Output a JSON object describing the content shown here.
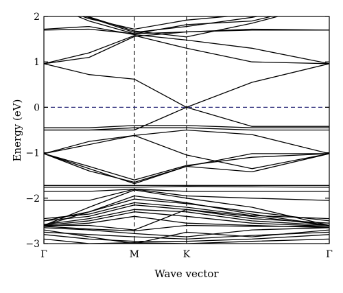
{
  "chart_data": {
    "type": "line",
    "title": "",
    "xlabel": "Wave vector",
    "ylabel": "Energy (eV)",
    "ylim": [
      -3,
      2
    ],
    "yticks": [
      -3,
      -2,
      -1,
      0,
      1,
      2
    ],
    "ytick_labels": [
      "−3",
      "−2",
      "−1",
      "0",
      "1",
      "2"
    ],
    "x_points": [
      "Γ",
      "M",
      "K",
      "Γ"
    ],
    "x_point_positions": [
      0,
      1,
      1.577,
      3.155
    ],
    "fermi_level": 0,
    "fermi_line_color": "#2b2b7a",
    "grid": false,
    "legend": "none",
    "series": [
      {
        "x": [
          0,
          0.5,
          1,
          1.577,
          2.3,
          3.155
        ],
        "values": [
          0.96,
          0.72,
          0.62,
          0.0,
          -0.42,
          -0.42
        ]
      },
      {
        "x": [
          0,
          0.5,
          1,
          1.577,
          2.3,
          3.155
        ],
        "values": [
          0.96,
          1.2,
          1.58,
          1.3,
          1.0,
          0.96
        ]
      },
      {
        "x": [
          0,
          0.5,
          1,
          1.577,
          2.3,
          3.155
        ],
        "values": [
          0.96,
          1.1,
          1.56,
          1.66,
          1.7,
          1.7
        ]
      },
      {
        "x": [
          0,
          0.5,
          1,
          1.577,
          2.3,
          3.155
        ],
        "values": [
          1.7,
          1.72,
          1.62,
          1.66,
          1.72,
          1.7
        ]
      },
      {
        "x": [
          0,
          0.5,
          1,
          1.577,
          2.3,
          3.155
        ],
        "values": [
          1.72,
          1.78,
          1.6,
          1.48,
          1.3,
          0.96
        ]
      },
      {
        "x": [
          0,
          0.5,
          1,
          1.577,
          2.3,
          3.155
        ],
        "values": [
          2.3,
          1.9,
          1.62,
          1.82,
          1.9,
          2.3
        ]
      },
      {
        "x": [
          0,
          0.5,
          1,
          1.577,
          2.3,
          3.155
        ],
        "values": [
          2.3,
          1.95,
          1.72,
          1.92,
          2.05,
          2.3
        ]
      },
      {
        "x": [
          0,
          1,
          1.577,
          2.3,
          3.155
        ],
        "values": [
          2.3,
          1.68,
          1.55,
          1.85,
          2.3
        ]
      },
      {
        "x": [
          0,
          1,
          1.577,
          2.3,
          3.155
        ],
        "values": [
          2.3,
          1.65,
          1.78,
          1.98,
          2.3
        ]
      },
      {
        "x": [
          0,
          0.5,
          1,
          1.577,
          2.3,
          3.155
        ],
        "values": [
          -0.45,
          -0.45,
          -0.4,
          -0.4,
          -0.45,
          -0.45
        ]
      },
      {
        "x": [
          0,
          0.5,
          1,
          1.577,
          2.3,
          3.155
        ],
        "values": [
          -0.5,
          -0.5,
          -0.45,
          -0.45,
          -0.5,
          -0.5
        ]
      },
      {
        "x": [
          0,
          1,
          1.577,
          2.3,
          3.155
        ],
        "values": [
          -0.5,
          -0.5,
          0.0,
          0.55,
          0.96
        ]
      },
      {
        "x": [
          0,
          0.5,
          1,
          1.577,
          2.3,
          3.155
        ],
        "values": [
          -1.02,
          -0.75,
          -0.62,
          -0.5,
          -0.6,
          -1.02
        ]
      },
      {
        "x": [
          0,
          0.5,
          1,
          1.577,
          2.3,
          3.155
        ],
        "values": [
          -1.02,
          -1.3,
          -1.6,
          -1.28,
          -1.1,
          -1.02
        ]
      },
      {
        "x": [
          0,
          0.5,
          1,
          1.577,
          2.3,
          3.155
        ],
        "values": [
          -1.02,
          -1.4,
          -1.65,
          -1.3,
          -1.42,
          -1.02
        ]
      },
      {
        "x": [
          0,
          1,
          1.577,
          2.3,
          3.155
        ],
        "values": [
          -1.02,
          -1.68,
          -1.3,
          -1.02,
          -1.02
        ]
      },
      {
        "x": [
          0,
          1,
          1.577,
          2.3,
          3.155
        ],
        "values": [
          -1.02,
          -0.62,
          -1.05,
          -1.35,
          -1.02
        ]
      },
      {
        "x": [
          0,
          1,
          1.577,
          2.3,
          3.155
        ],
        "values": [
          -1.72,
          -1.72,
          -1.72,
          -1.72,
          -1.72
        ]
      },
      {
        "x": [
          0,
          1,
          1.577,
          2.3,
          3.155
        ],
        "values": [
          -1.76,
          -1.76,
          -1.74,
          -1.75,
          -1.76
        ]
      },
      {
        "x": [
          0,
          0.5,
          1,
          1.577,
          2.3,
          3.155
        ],
        "values": [
          -1.85,
          -1.85,
          -1.8,
          -1.85,
          -1.85,
          -1.85
        ]
      },
      {
        "x": [
          0,
          0.5,
          1,
          1.577,
          2.3,
          3.155
        ],
        "values": [
          -2.05,
          -2.05,
          -1.8,
          -1.95,
          -2.0,
          -2.05
        ]
      },
      {
        "x": [
          0,
          0.5,
          1,
          1.577,
          2.3,
          3.155
        ],
        "values": [
          -2.6,
          -2.2,
          -1.82,
          -2.0,
          -2.2,
          -2.6
        ]
      },
      {
        "x": [
          0,
          0.5,
          1,
          1.577,
          2.3,
          3.155
        ],
        "values": [
          -2.6,
          -2.3,
          -1.95,
          -2.1,
          -2.35,
          -2.6
        ]
      },
      {
        "x": [
          0,
          0.5,
          1,
          1.577,
          2.3,
          3.155
        ],
        "values": [
          -2.5,
          -2.3,
          -2.02,
          -2.12,
          -2.3,
          -2.5
        ]
      },
      {
        "x": [
          0,
          0.5,
          1,
          1.577,
          2.3,
          3.155
        ],
        "values": [
          -2.45,
          -2.35,
          -2.1,
          -2.2,
          -2.38,
          -2.45
        ]
      },
      {
        "x": [
          0,
          0.5,
          1,
          1.577,
          2.3,
          3.155
        ],
        "values": [
          -2.5,
          -2.4,
          -2.15,
          -2.25,
          -2.45,
          -2.55
        ]
      },
      {
        "x": [
          0,
          0.5,
          1,
          1.577,
          2.3,
          3.155
        ],
        "values": [
          -2.58,
          -2.45,
          -2.25,
          -2.3,
          -2.5,
          -2.6
        ]
      },
      {
        "x": [
          0,
          0.5,
          1,
          1.577,
          2.3,
          3.155
        ],
        "values": [
          -2.6,
          -2.5,
          -2.3,
          -2.4,
          -2.55,
          -2.62
        ]
      },
      {
        "x": [
          0,
          0.5,
          1,
          1.577,
          2.3,
          3.155
        ],
        "values": [
          -2.62,
          -2.55,
          -2.4,
          -2.55,
          -2.6,
          -2.65
        ]
      },
      {
        "x": [
          0,
          0.5,
          1,
          1.577,
          2.3,
          3.155
        ],
        "values": [
          -2.6,
          -2.6,
          -2.7,
          -2.25,
          -2.4,
          -2.6
        ]
      },
      {
        "x": [
          0,
          0.5,
          1,
          1.577,
          2.3,
          3.155
        ],
        "values": [
          -2.62,
          -2.68,
          -2.72,
          -2.6,
          -2.62,
          -2.62
        ]
      },
      {
        "x": [
          0,
          0.5,
          1,
          1.577,
          2.3,
          3.155
        ],
        "values": [
          -2.65,
          -2.7,
          -2.78,
          -2.85,
          -2.7,
          -2.65
        ]
      },
      {
        "x": [
          0,
          0.5,
          1,
          1.577,
          2.3,
          3.155
        ],
        "values": [
          -2.75,
          -2.8,
          -2.85,
          -2.9,
          -2.82,
          -2.75
        ]
      },
      {
        "x": [
          0,
          0.5,
          1,
          1.577,
          2.3,
          3.155
        ],
        "values": [
          -2.8,
          -2.9,
          -2.95,
          -2.95,
          -2.9,
          -2.8
        ]
      },
      {
        "x": [
          0,
          0.5,
          1,
          1.577,
          2.3,
          3.155
        ],
        "values": [
          -2.7,
          -2.85,
          -3.0,
          -2.75,
          -2.85,
          -2.7
        ]
      },
      {
        "x": [
          0,
          0.5,
          1,
          1.577,
          2.3,
          3.155
        ],
        "values": [
          -2.9,
          -3.0,
          -2.98,
          -3.0,
          -2.95,
          -2.9
        ]
      }
    ]
  }
}
